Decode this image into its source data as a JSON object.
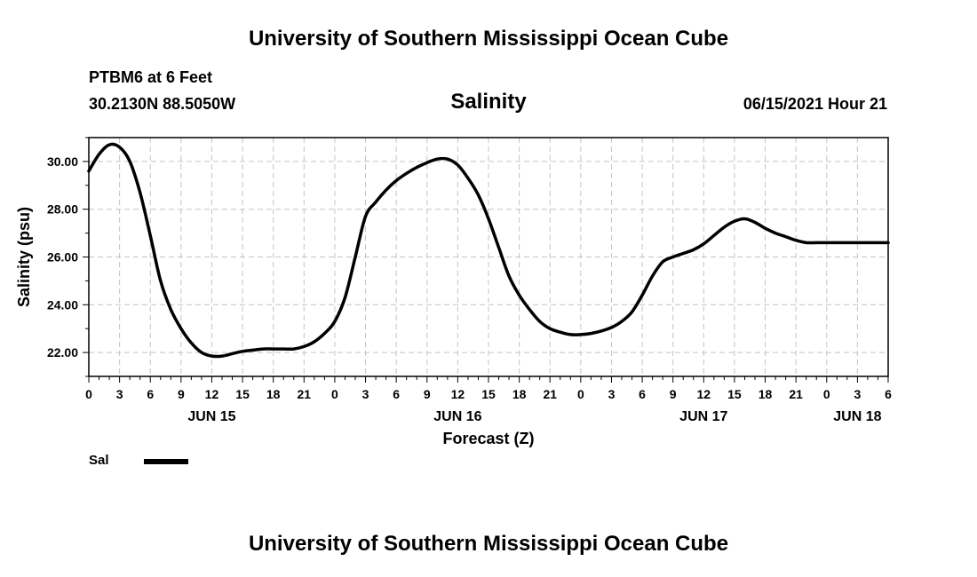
{
  "header": {
    "org_title": "University of Southern Mississippi Ocean Cube",
    "station": "PTBM6 at 6 Feet",
    "coordinates": "30.2130N  88.5050W",
    "timestamp": "06/15/2021 Hour 21"
  },
  "footer": {
    "org_title": "University of Southern Mississippi Ocean Cube"
  },
  "chart_data": {
    "type": "line",
    "title": "Salinity",
    "xlabel": "Forecast (Z)",
    "ylabel": "Salinity (psu)",
    "xlim": [
      0,
      78
    ],
    "ylim": [
      21.0,
      31.0
    ],
    "grid": true,
    "y_ticks": [
      22,
      24,
      26,
      28,
      30
    ],
    "y_tick_labels": [
      "22.00",
      "24.00",
      "26.00",
      "28.00",
      "30.00"
    ],
    "x_ticks": [
      0,
      3,
      6,
      9,
      12,
      15,
      18,
      21,
      24,
      27,
      30,
      33,
      36,
      39,
      42,
      45,
      48,
      51,
      54,
      57,
      60,
      63,
      66,
      69,
      72,
      75,
      78
    ],
    "x_tick_labels": [
      "0",
      "3",
      "6",
      "9",
      "12",
      "15",
      "18",
      "21",
      "0",
      "3",
      "6",
      "9",
      "12",
      "15",
      "18",
      "21",
      "0",
      "3",
      "6",
      "9",
      "12",
      "15",
      "18",
      "21",
      "0",
      "3",
      "6"
    ],
    "date_labels": [
      {
        "x": 12,
        "label": "JUN 15"
      },
      {
        "x": 36,
        "label": "JUN 16"
      },
      {
        "x": 60,
        "label": "JUN 17"
      },
      {
        "x": 75,
        "label": "JUN 18"
      }
    ],
    "legend": {
      "placement": "bottom-left",
      "entries": [
        {
          "name": "Sal",
          "color": "#000000"
        }
      ]
    },
    "series": [
      {
        "name": "Sal",
        "color": "#000000",
        "x": [
          0,
          1,
          2,
          3,
          4,
          5,
          6,
          7,
          8,
          9,
          10,
          11,
          12,
          13,
          14,
          15,
          16,
          17,
          18,
          19,
          20,
          21,
          22,
          23,
          24,
          25,
          26,
          27,
          28,
          29,
          30,
          31,
          32,
          33,
          34,
          35,
          36,
          37,
          38,
          39,
          40,
          41,
          42,
          43,
          44,
          45,
          46,
          47,
          48,
          49,
          50,
          51,
          52,
          53,
          54,
          55,
          56,
          57,
          58,
          59,
          60,
          61,
          62,
          63,
          64,
          65,
          66,
          67,
          68,
          69,
          70,
          71,
          72,
          73,
          74,
          75,
          76,
          77,
          78
        ],
        "values": [
          29.6,
          30.3,
          30.7,
          30.6,
          30.0,
          28.7,
          26.9,
          25.0,
          23.8,
          23.0,
          22.4,
          22.0,
          21.85,
          21.85,
          21.95,
          22.05,
          22.1,
          22.15,
          22.15,
          22.15,
          22.15,
          22.25,
          22.45,
          22.8,
          23.3,
          24.3,
          26.0,
          27.7,
          28.3,
          28.8,
          29.2,
          29.5,
          29.75,
          29.95,
          30.1,
          30.1,
          29.85,
          29.3,
          28.6,
          27.6,
          26.4,
          25.2,
          24.4,
          23.8,
          23.3,
          23.0,
          22.85,
          22.75,
          22.75,
          22.8,
          22.9,
          23.05,
          23.3,
          23.7,
          24.4,
          25.2,
          25.8,
          26.0,
          26.15,
          26.3,
          26.55,
          26.9,
          27.25,
          27.5,
          27.6,
          27.45,
          27.2,
          27.0,
          26.85,
          26.7,
          26.6,
          26.6,
          26.6,
          26.6,
          26.6,
          26.6,
          26.6,
          26.6,
          26.6
        ]
      }
    ]
  }
}
